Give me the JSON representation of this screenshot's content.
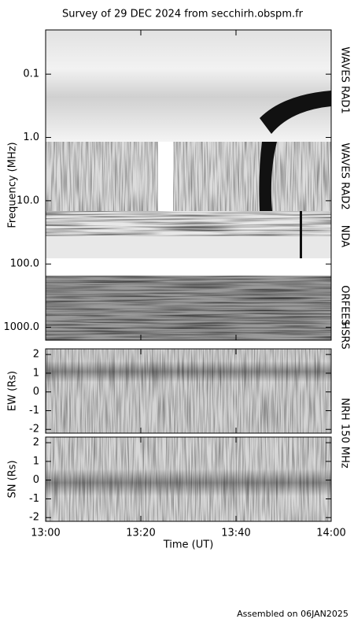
{
  "chart_data": [
    {
      "type": "spectrogram",
      "title": "Survey of 29 DEC 2024 from secchirh.obspm.fr",
      "ylabel": "Frequency (MHz)",
      "log_scale": true,
      "y_inverted": true,
      "ylim": [
        0.02,
        1600
      ],
      "yticks": [
        0.1,
        {
          "value": 1,
          "label": "1.0"
        },
        {
          "value": 10,
          "label": "10.0"
        },
        {
          "value": 100,
          "label": "100.0"
        },
        {
          "value": 1000,
          "label": "1000.0"
        }
      ],
      "side_labels": [
        "WAVES RAD1",
        "WAVES RAD2",
        "NDA",
        "ORFEES",
        "HSRS"
      ]
    },
    {
      "type": "image",
      "ylabel": "EW (Rs)",
      "ylim": [
        -2.2,
        2.3
      ],
      "yticks": [
        -2,
        -1,
        0,
        1,
        2
      ],
      "side_label": "NRH 150 MHz"
    },
    {
      "type": "image",
      "ylabel": "SN (Rs)",
      "ylim": [
        -2.2,
        2.3
      ],
      "yticks": [
        -2,
        -1,
        0,
        1,
        2
      ],
      "xlabel": "Time (UT)",
      "xlim": [
        780,
        840
      ],
      "xticks": [
        {
          "value": 780,
          "label": "13:00"
        },
        {
          "value": 800,
          "label": "13:20"
        },
        {
          "value": 820,
          "label": "13:40"
        },
        {
          "value": 840,
          "label": "14:00"
        }
      ],
      "footnote": "Assembled on 06JAN2025"
    }
  ]
}
